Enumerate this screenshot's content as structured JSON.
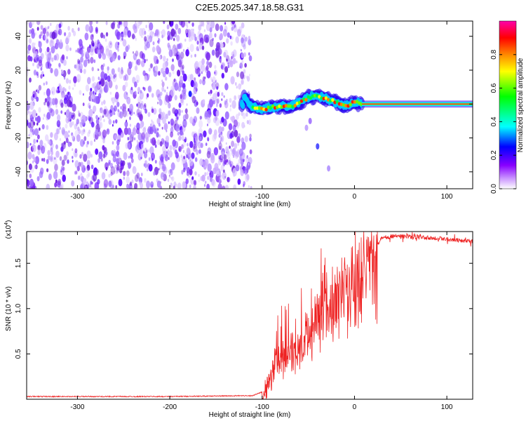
{
  "title": "C2E5.2025.347.18.58.G31",
  "chart_data": [
    {
      "type": "heatmap",
      "xlabel": "Height of straight line (km)",
      "ylabel": "Frequency (Hz)",
      "xlim": [
        -355,
        128
      ],
      "ylim": [
        -50,
        49
      ],
      "x_ticks": [
        -300,
        -200,
        -100,
        0,
        100
      ],
      "y_ticks": [
        -40,
        -20,
        0,
        20,
        40
      ],
      "x_tick_labels": [
        "-300",
        "-200",
        "-100",
        "0",
        "100"
      ],
      "y_tick_labels": [
        "-40",
        "-20",
        "0",
        "20",
        "40"
      ],
      "colorbar": {
        "label": "Normalized spectral amplitude",
        "range": [
          0,
          1
        ],
        "ticks": [
          0.0,
          0.2,
          0.4,
          0.6,
          0.8
        ],
        "tick_labels": [
          "0.0",
          "0.2",
          "0.4",
          "0.6",
          "0.8"
        ],
        "colors": [
          "#ffffff",
          "#cc99ff",
          "#8800ff",
          "#0000ff",
          "#00ffff",
          "#00ff00",
          "#ffff00",
          "#ff8800",
          "#ff0000",
          "#ff00aa"
        ]
      },
      "signal_track": [
        [
          -120,
          5
        ],
        [
          -115,
          0
        ],
        [
          -110,
          -2
        ],
        [
          -100,
          -3
        ],
        [
          -90,
          -2
        ],
        [
          -80,
          -1
        ],
        [
          -70,
          -2
        ],
        [
          -60,
          1
        ],
        [
          -50,
          4
        ],
        [
          -40,
          5
        ],
        [
          -30,
          3
        ],
        [
          -20,
          1
        ],
        [
          -10,
          -1
        ],
        [
          0,
          1
        ],
        [
          10,
          0
        ],
        [
          50,
          0
        ],
        [
          128,
          0
        ]
      ],
      "noise_region_x": [
        -355,
        -118
      ]
    },
    {
      "type": "line",
      "xlabel": "Height of straight line (km)",
      "ylabel": "SNR (10 * v/v)",
      "y_multiplier": "(x10",
      "y_multiplier_exp": "4",
      "y_multiplier_close": ")",
      "xlim": [
        -355,
        128
      ],
      "ylim": [
        0,
        1.85
      ],
      "x_ticks": [
        -300,
        -200,
        -100,
        0,
        100
      ],
      "y_ticks": [
        0.5,
        1.0,
        1.5
      ],
      "x_tick_labels": [
        "-300",
        "-200",
        "-100",
        "0",
        "100"
      ],
      "y_tick_labels": [
        "0.5",
        "1.0",
        "1.5"
      ],
      "series": [
        {
          "name": "SNR",
          "color": "#ee2222",
          "envelope": [
            [
              -355,
              0.03
            ],
            [
              -200,
              0.03
            ],
            [
              -110,
              0.04
            ],
            [
              -100,
              0.08
            ],
            [
              -95,
              0.2
            ],
            [
              -85,
              0.45
            ],
            [
              -75,
              0.55
            ],
            [
              -65,
              0.6
            ],
            [
              -55,
              0.75
            ],
            [
              -45,
              0.9
            ],
            [
              -35,
              1.1
            ],
            [
              -25,
              1.2
            ],
            [
              -15,
              1.3
            ],
            [
              -5,
              1.4
            ],
            [
              10,
              1.55
            ],
            [
              20,
              1.65
            ],
            [
              30,
              1.78
            ],
            [
              40,
              1.8
            ],
            [
              70,
              1.79
            ],
            [
              100,
              1.77
            ],
            [
              128,
              1.74
            ]
          ]
        }
      ]
    }
  ]
}
